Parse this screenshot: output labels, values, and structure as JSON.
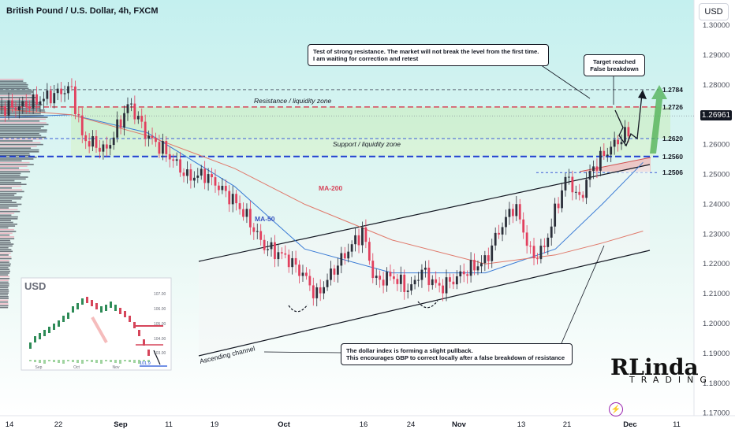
{
  "header": {
    "title": "British Pound / U.S. Dollar, 4h, FXCM",
    "currency_button": "USD",
    "current_price": "1.26961"
  },
  "annotations": {
    "resistance_zone": "Resistance / liquidity zone",
    "support_zone": "Support / liquidity zone",
    "ma200": "MA-200",
    "ma50": "MA-50",
    "channel": "Ascending channel",
    "note_top_1": "Test of strong resistance. The market will not break the level from the first time.",
    "note_top_2": "I am waiting for correction and retest",
    "note_target_1": "Target reached",
    "note_target_2": "False breakdown",
    "note_bottom_1": "The dollar index is forming a slight pullback.",
    "note_bottom_2": "This encourages GBP to correct locally after a false breakdown of resistance"
  },
  "inset": {
    "title": "USD",
    "y_ticks": [
      "107.00",
      "106.00",
      "105.00",
      "104.00",
      "103.00"
    ],
    "x_ticks": [
      "Sep",
      "Oct",
      "Nov"
    ],
    "last_value": "101.9"
  },
  "logo": {
    "main": "RLinda",
    "sub": "TRADING"
  },
  "chart_data": {
    "type": "line",
    "title": "British Pound / U.S. Dollar, 4h, FXCM",
    "xlabel": "",
    "ylabel": "",
    "ylim": [
      1.165,
      1.305
    ],
    "x_ticks": [
      "14",
      "22",
      "Sep",
      "11",
      "19",
      "Oct",
      "16",
      "24",
      "Nov",
      "13",
      "21",
      "Dec",
      "11"
    ],
    "y_ticks": [
      "1.30000",
      "1.29000",
      "1.28000",
      "1.27000",
      "1.26000",
      "1.25000",
      "1.24000",
      "1.23000",
      "1.22000",
      "1.21000",
      "1.20000",
      "1.19000",
      "1.18000",
      "1.17000"
    ],
    "levels": [
      {
        "label": "1.2784",
        "value": 1.2784
      },
      {
        "label": "1.2726",
        "value": 1.2726
      },
      {
        "label": "1.2620",
        "value": 1.262
      },
      {
        "label": "1.2560",
        "value": 1.256
      },
      {
        "label": "1.2506",
        "value": 1.2506
      }
    ],
    "series": [
      {
        "name": "",
        "x": [
          "Aug 9",
          "Aug 14",
          "Aug 18",
          "Aug 22",
          "Aug 24",
          "Aug 28",
          "Sep 1",
          "Sep 4",
          "Sep 7",
          "Sep 11",
          "Sep 14",
          "Sep 19",
          "Sep 21",
          "Sep 24",
          "Sep 28",
          "Oct 1",
          "Oct 3",
          "Oct 6",
          "Oct 9",
          "Oct 11",
          "Oct 13",
          "Oct 16",
          "Oct 19",
          "Oct 21",
          "Oct 24",
          "Oct 26",
          "Oct 29",
          "Nov 1",
          "Nov 3",
          "Nov 6",
          "Nov 9",
          "Nov 11",
          "Nov 13",
          "Nov 15",
          "Nov 17",
          "Nov 19",
          "Nov 21",
          "Nov 23",
          "Nov 26",
          "Nov 28"
        ],
        "values": [
          1.272,
          1.273,
          1.276,
          1.279,
          1.262,
          1.258,
          1.274,
          1.263,
          1.258,
          1.249,
          1.25,
          1.241,
          1.236,
          1.226,
          1.222,
          1.216,
          1.209,
          1.218,
          1.226,
          1.231,
          1.214,
          1.216,
          1.211,
          1.218,
          1.212,
          1.214,
          1.218,
          1.221,
          1.23,
          1.24,
          1.222,
          1.225,
          1.238,
          1.25,
          1.241,
          1.251,
          1.256,
          1.26,
          1.265,
          1.274
        ]
      },
      {
        "name": "MA-50",
        "x": [
          "Aug 9",
          "Aug 22",
          "Sep 4",
          "Sep 19",
          "Oct 1",
          "Oct 16",
          "Nov 1",
          "Nov 13",
          "Nov 21",
          "Nov 28"
        ],
        "values": [
          1.269,
          1.27,
          1.264,
          1.246,
          1.225,
          1.217,
          1.217,
          1.225,
          1.24,
          1.254
        ]
      },
      {
        "name": "MA-200",
        "x": [
          "Aug 9",
          "Aug 22",
          "Sep 4",
          "Sep 19",
          "Oct 1",
          "Oct 16",
          "Nov 1",
          "Nov 13",
          "Nov 21",
          "Nov 28"
        ],
        "values": [
          1.272,
          1.27,
          1.263,
          1.252,
          1.24,
          1.228,
          1.22,
          1.223,
          1.227,
          1.231
        ]
      }
    ]
  }
}
